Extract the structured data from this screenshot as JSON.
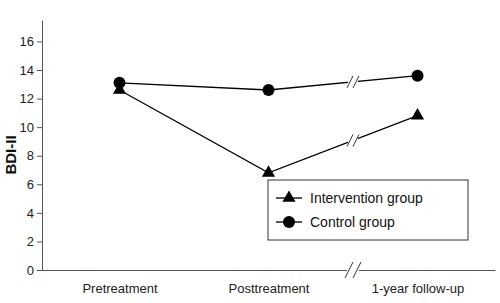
{
  "chart_data": {
    "type": "line",
    "y_label": "BDI-II",
    "categories": [
      "Pretreatment",
      "Posttreatment",
      "1-year follow-up"
    ],
    "series": [
      {
        "name": "Intervention group",
        "color": "#000000",
        "marker": "triangle",
        "line_style": "solid",
        "values": [
          12.6,
          6.8,
          10.8
        ]
      },
      {
        "name": "Control group",
        "color": "#000000",
        "marker": "circle",
        "line_style": "solid",
        "values": [
          13.1,
          12.6,
          13.6
        ]
      }
    ],
    "ylim": [
      0,
      17.5
    ],
    "yticks": [
      0,
      2,
      4,
      6,
      8,
      10,
      12,
      14,
      16
    ],
    "grid": false,
    "legend": "lower right"
  }
}
